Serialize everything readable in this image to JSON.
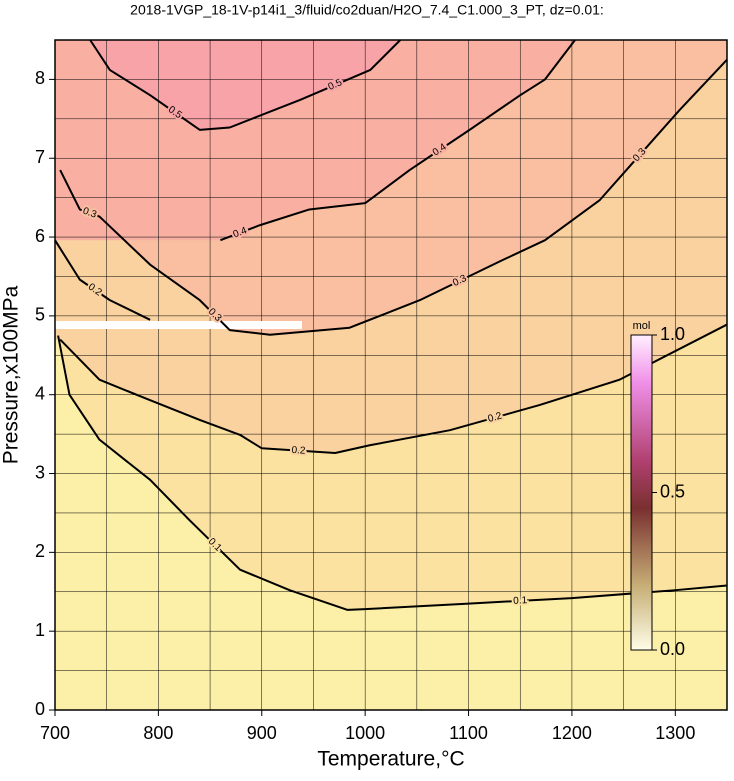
{
  "chart_data": {
    "type": "contour",
    "title": "2018-1VGP_18-1V-p14i1_3/fluid/co2duan/H2O_7.4_C1.000_3_PT, dz=0.01:",
    "x_label": "Temperature,°C",
    "y_label": "Pressure,x100MPa",
    "xlim": [
      700,
      1350
    ],
    "ylim": [
      0,
      8.5
    ],
    "xticks": [
      700,
      800,
      900,
      1000,
      1100,
      1200,
      1300
    ],
    "yticks": [
      0,
      1,
      2,
      3,
      4,
      5,
      6,
      7,
      8
    ],
    "xgrid_minor": [
      750,
      850,
      950,
      1050,
      1150,
      1250
    ],
    "ygrid_minor": [
      0.5,
      1.5,
      2.5,
      3.5,
      4.5,
      5.5,
      6.5,
      7.5
    ],
    "grid": true,
    "background": "#fcefa8",
    "line_color": "#000000",
    "contours": [
      {
        "level": 0.1,
        "fill": "#fbe2a0",
        "x": [
          703,
          714,
          743,
          792,
          830,
          879,
          927,
          983,
          1000,
          1100,
          1200,
          1300,
          1350
        ],
        "y": [
          4.75,
          4.0,
          3.43,
          2.92,
          2.41,
          1.78,
          1.52,
          1.27,
          1.28,
          1.35,
          1.42,
          1.52,
          1.58
        ]
      },
      {
        "level": 0.2,
        "fill": "#fad2a0",
        "x": [
          700,
          724,
          753,
          792,
          null,
          705,
          743,
          792,
          840,
          879,
          900,
          971,
          1005,
          1082,
          1169,
          1246,
          1350
        ],
        "y": [
          5.96,
          5.46,
          5.2,
          4.95,
          null,
          4.7,
          4.19,
          3.93,
          3.68,
          3.49,
          3.32,
          3.26,
          3.36,
          3.55,
          3.87,
          4.19,
          4.89
        ]
      },
      {
        "level": 0.3,
        "fill": "#f9bfa0",
        "x": [
          705,
          724,
          743,
          792,
          840,
          869,
          908,
          985,
          1053,
          1130,
          1174,
          1227,
          1304,
          1350
        ],
        "y": [
          6.85,
          6.35,
          6.26,
          5.65,
          5.2,
          4.82,
          4.76,
          4.85,
          5.2,
          5.69,
          5.96,
          6.47,
          7.61,
          8.25
        ]
      },
      {
        "level": 0.4,
        "fill": "#f9b0a3",
        "x": [
          860,
          898,
          946,
          1000,
          1043,
          1101,
          1150,
          1174,
          1203
        ],
        "y": [
          5.96,
          6.15,
          6.35,
          6.43,
          6.85,
          7.36,
          7.8,
          8.0,
          8.5
        ]
      },
      {
        "level": 0.5,
        "fill": "#f8a3a8",
        "x": [
          734,
          753,
          792,
          840,
          869,
          937,
          1005,
          1034
        ],
        "y": [
          8.5,
          8.12,
          7.8,
          7.36,
          7.39,
          7.74,
          8.12,
          8.5
        ]
      }
    ],
    "colorbar": {
      "label": "mol",
      "lim": [
        0,
        1
      ],
      "ticks": [
        {
          "value": 0,
          "label": "0.0"
        },
        {
          "value": 0.5,
          "label": "0.5"
        },
        {
          "value": 1,
          "label": "1.0"
        }
      ],
      "stops": [
        [
          0,
          "#fffde8"
        ],
        [
          0.2,
          "#c8b078"
        ],
        [
          0.45,
          "#7a3030"
        ],
        [
          0.6,
          "#b04070"
        ],
        [
          0.85,
          "#f090e8"
        ],
        [
          1,
          "#fff0ff"
        ]
      ]
    }
  }
}
